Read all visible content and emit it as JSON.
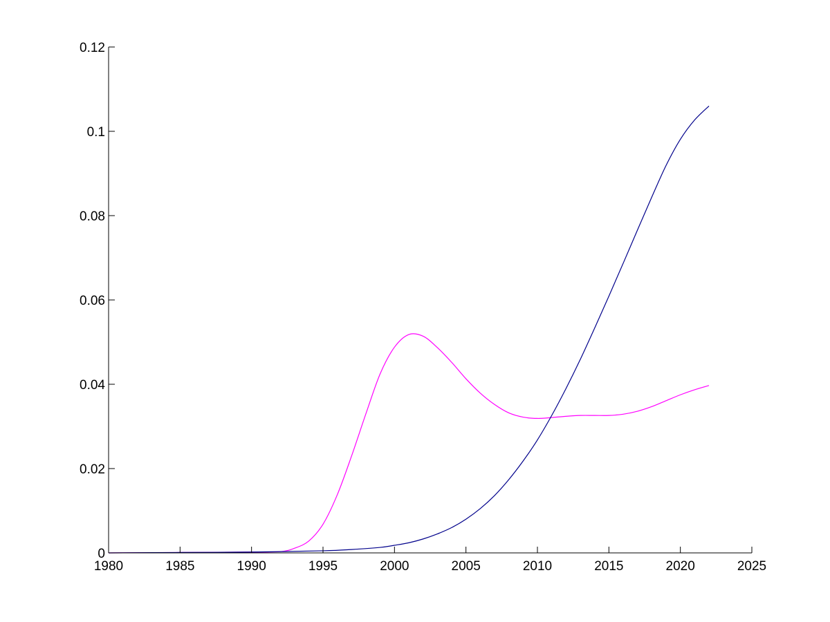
{
  "chart_data": {
    "type": "line",
    "title": "",
    "xlabel": "",
    "ylabel": "",
    "xlim": [
      1980,
      2025
    ],
    "ylim": [
      0,
      0.12
    ],
    "x_ticks": [
      1980,
      1985,
      1990,
      1995,
      2000,
      2005,
      2010,
      2015,
      2020,
      2025
    ],
    "y_ticks": [
      0,
      0.02,
      0.04,
      0.06,
      0.08,
      0.1,
      0.12
    ],
    "x_tick_labels": [
      "1980",
      "1985",
      "1990",
      "1995",
      "2000",
      "2005",
      "2010",
      "2015",
      "2020",
      "2025"
    ],
    "y_tick_labels": [
      "0",
      "0.02",
      "0.04",
      "0.06",
      "0.08",
      "0.1",
      "0.12"
    ],
    "grid": false,
    "legend": "none",
    "series": [
      {
        "color": "#ff00ff",
        "x": [
          1980,
          1985,
          1990,
          1992,
          1993,
          1994,
          1995,
          1996,
          1997,
          1998,
          1999,
          2000,
          2001,
          2002,
          2003,
          2004,
          2005,
          2006,
          2007,
          2008,
          2009,
          2010,
          2011,
          2012,
          2013,
          2014,
          2015,
          2016,
          2017,
          2018,
          2019,
          2020,
          2021,
          2022
        ],
        "y": [
          0,
          0.0001,
          0.0002,
          0.0003,
          0.0011,
          0.0028,
          0.0068,
          0.0138,
          0.023,
          0.033,
          0.0425,
          0.0488,
          0.0518,
          0.0514,
          0.0487,
          0.0452,
          0.0413,
          0.0379,
          0.0352,
          0.0332,
          0.0322,
          0.0319,
          0.0321,
          0.0324,
          0.0326,
          0.0326,
          0.0326,
          0.0329,
          0.0336,
          0.0347,
          0.0361,
          0.0375,
          0.0387,
          0.0397
        ]
      },
      {
        "color": "#00008b",
        "x": [
          1980,
          1985,
          1990,
          1995,
          1997,
          1999,
          2000,
          2001,
          2002,
          2003,
          2004,
          2005,
          2006,
          2007,
          2008,
          2009,
          2010,
          2011,
          2012,
          2013,
          2014,
          2015,
          2016,
          2017,
          2018,
          2019,
          2020,
          2021,
          2022
        ],
        "y": [
          0,
          0.0001,
          0.0002,
          0.0005,
          0.0008,
          0.0013,
          0.0018,
          0.0024,
          0.0033,
          0.0045,
          0.006,
          0.008,
          0.0105,
          0.0136,
          0.0174,
          0.0218,
          0.0268,
          0.0326,
          0.039,
          0.0459,
          0.0533,
          0.0609,
          0.0687,
          0.0766,
          0.0844,
          0.0919,
          0.0981,
          0.1027,
          0.106
        ]
      }
    ]
  }
}
